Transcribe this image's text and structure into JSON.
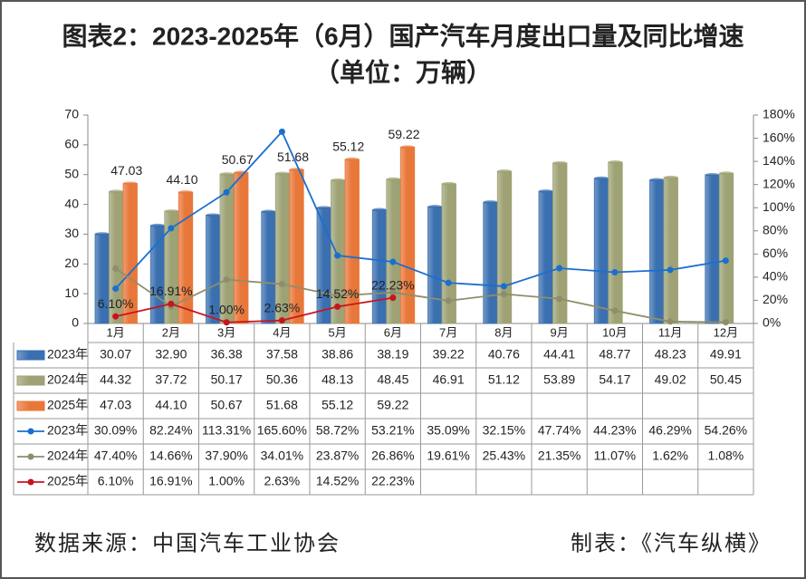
{
  "chart_data": {
    "type": "bar",
    "title": "图表2：2023-2025年（6月）国产汽车月度出口量及同比增速",
    "subtitle": "（单位：万辆）",
    "categories": [
      "1月",
      "2月",
      "3月",
      "4月",
      "5月",
      "6月",
      "7月",
      "8月",
      "9月",
      "10月",
      "11月",
      "12月"
    ],
    "ylim": [
      0,
      70
    ],
    "yticks": [
      0,
      10,
      20,
      30,
      40,
      50,
      60,
      70
    ],
    "y2lim": [
      0,
      180
    ],
    "y2ticks": [
      {
        "value": 0,
        "label": "0%"
      },
      {
        "value": 20,
        "label": "20%"
      },
      {
        "value": 40,
        "label": "40%"
      },
      {
        "value": 60,
        "label": "60%"
      },
      {
        "value": 80,
        "label": "80%"
      },
      {
        "value": 100,
        "label": "100%"
      },
      {
        "value": 120,
        "label": "120%"
      },
      {
        "value": 140,
        "label": "140%"
      },
      {
        "value": 160,
        "label": "160%"
      },
      {
        "value": 180,
        "label": "180%"
      }
    ],
    "series": [
      {
        "name": "2023年",
        "type": "bar",
        "color": "#3a6fb0",
        "values": [
          30.07,
          32.9,
          36.38,
          37.58,
          38.86,
          38.19,
          39.22,
          40.76,
          44.41,
          48.77,
          48.23,
          49.91
        ],
        "value_labels": [
          "30.07",
          "32.90",
          "36.38",
          "37.58",
          "38.86",
          "38.19",
          "39.22",
          "40.76",
          "44.41",
          "48.77",
          "48.23",
          "49.91"
        ]
      },
      {
        "name": "2024年",
        "type": "bar",
        "color": "#9ea274",
        "values": [
          44.32,
          37.72,
          50.17,
          50.36,
          48.13,
          48.45,
          46.91,
          51.12,
          53.89,
          54.17,
          49.02,
          50.45
        ],
        "value_labels": [
          "44.32",
          "37.72",
          "50.17",
          "50.36",
          "48.13",
          "48.45",
          "46.91",
          "51.12",
          "53.89",
          "54.17",
          "49.02",
          "50.45"
        ]
      },
      {
        "name": "2025年",
        "type": "bar",
        "color": "#e8773a",
        "data_labels": true,
        "values": [
          47.03,
          44.1,
          50.67,
          51.68,
          55.12,
          59.22,
          null,
          null,
          null,
          null,
          null,
          null
        ],
        "value_labels": [
          "47.03",
          "44.10",
          "50.67",
          "51.68",
          "55.12",
          "59.22",
          null,
          null,
          null,
          null,
          null,
          null
        ]
      },
      {
        "name": "2023年",
        "type": "line",
        "axis": "y2",
        "color": "#1a6fd0",
        "values": [
          30.09,
          82.24,
          113.31,
          165.6,
          58.72,
          53.21,
          35.09,
          32.15,
          47.74,
          44.23,
          46.29,
          54.26
        ],
        "value_labels": [
          "30.09%",
          "82.24%",
          "113.31%",
          "165.60%",
          "58.72%",
          "53.21%",
          "35.09%",
          "32.15%",
          "47.74%",
          "44.23%",
          "46.29%",
          "54.26%"
        ]
      },
      {
        "name": "2024年",
        "type": "line",
        "axis": "y2",
        "color": "#8e8e6c",
        "values": [
          47.4,
          14.66,
          37.9,
          34.01,
          23.87,
          26.86,
          19.61,
          25.43,
          21.35,
          11.07,
          1.62,
          1.08
        ],
        "value_labels": [
          "47.40%",
          "14.66%",
          "37.90%",
          "34.01%",
          "23.87%",
          "26.86%",
          "19.61%",
          "25.43%",
          "21.35%",
          "11.07%",
          "1.62%",
          "1.08%"
        ]
      },
      {
        "name": "2025年",
        "type": "line",
        "axis": "y2",
        "color": "#c8141e",
        "data_labels": true,
        "values": [
          6.1,
          16.91,
          1.0,
          2.63,
          14.52,
          22.23,
          null,
          null,
          null,
          null,
          null,
          null
        ],
        "value_labels": [
          "6.10%",
          "16.91%",
          "1.00%",
          "2.63%",
          "14.52%",
          "22.23%",
          null,
          null,
          null,
          null,
          null,
          null
        ]
      }
    ]
  },
  "footer": {
    "source": "数据来源：中国汽车工业协会",
    "maker": "制表：《汽车纵横》"
  }
}
